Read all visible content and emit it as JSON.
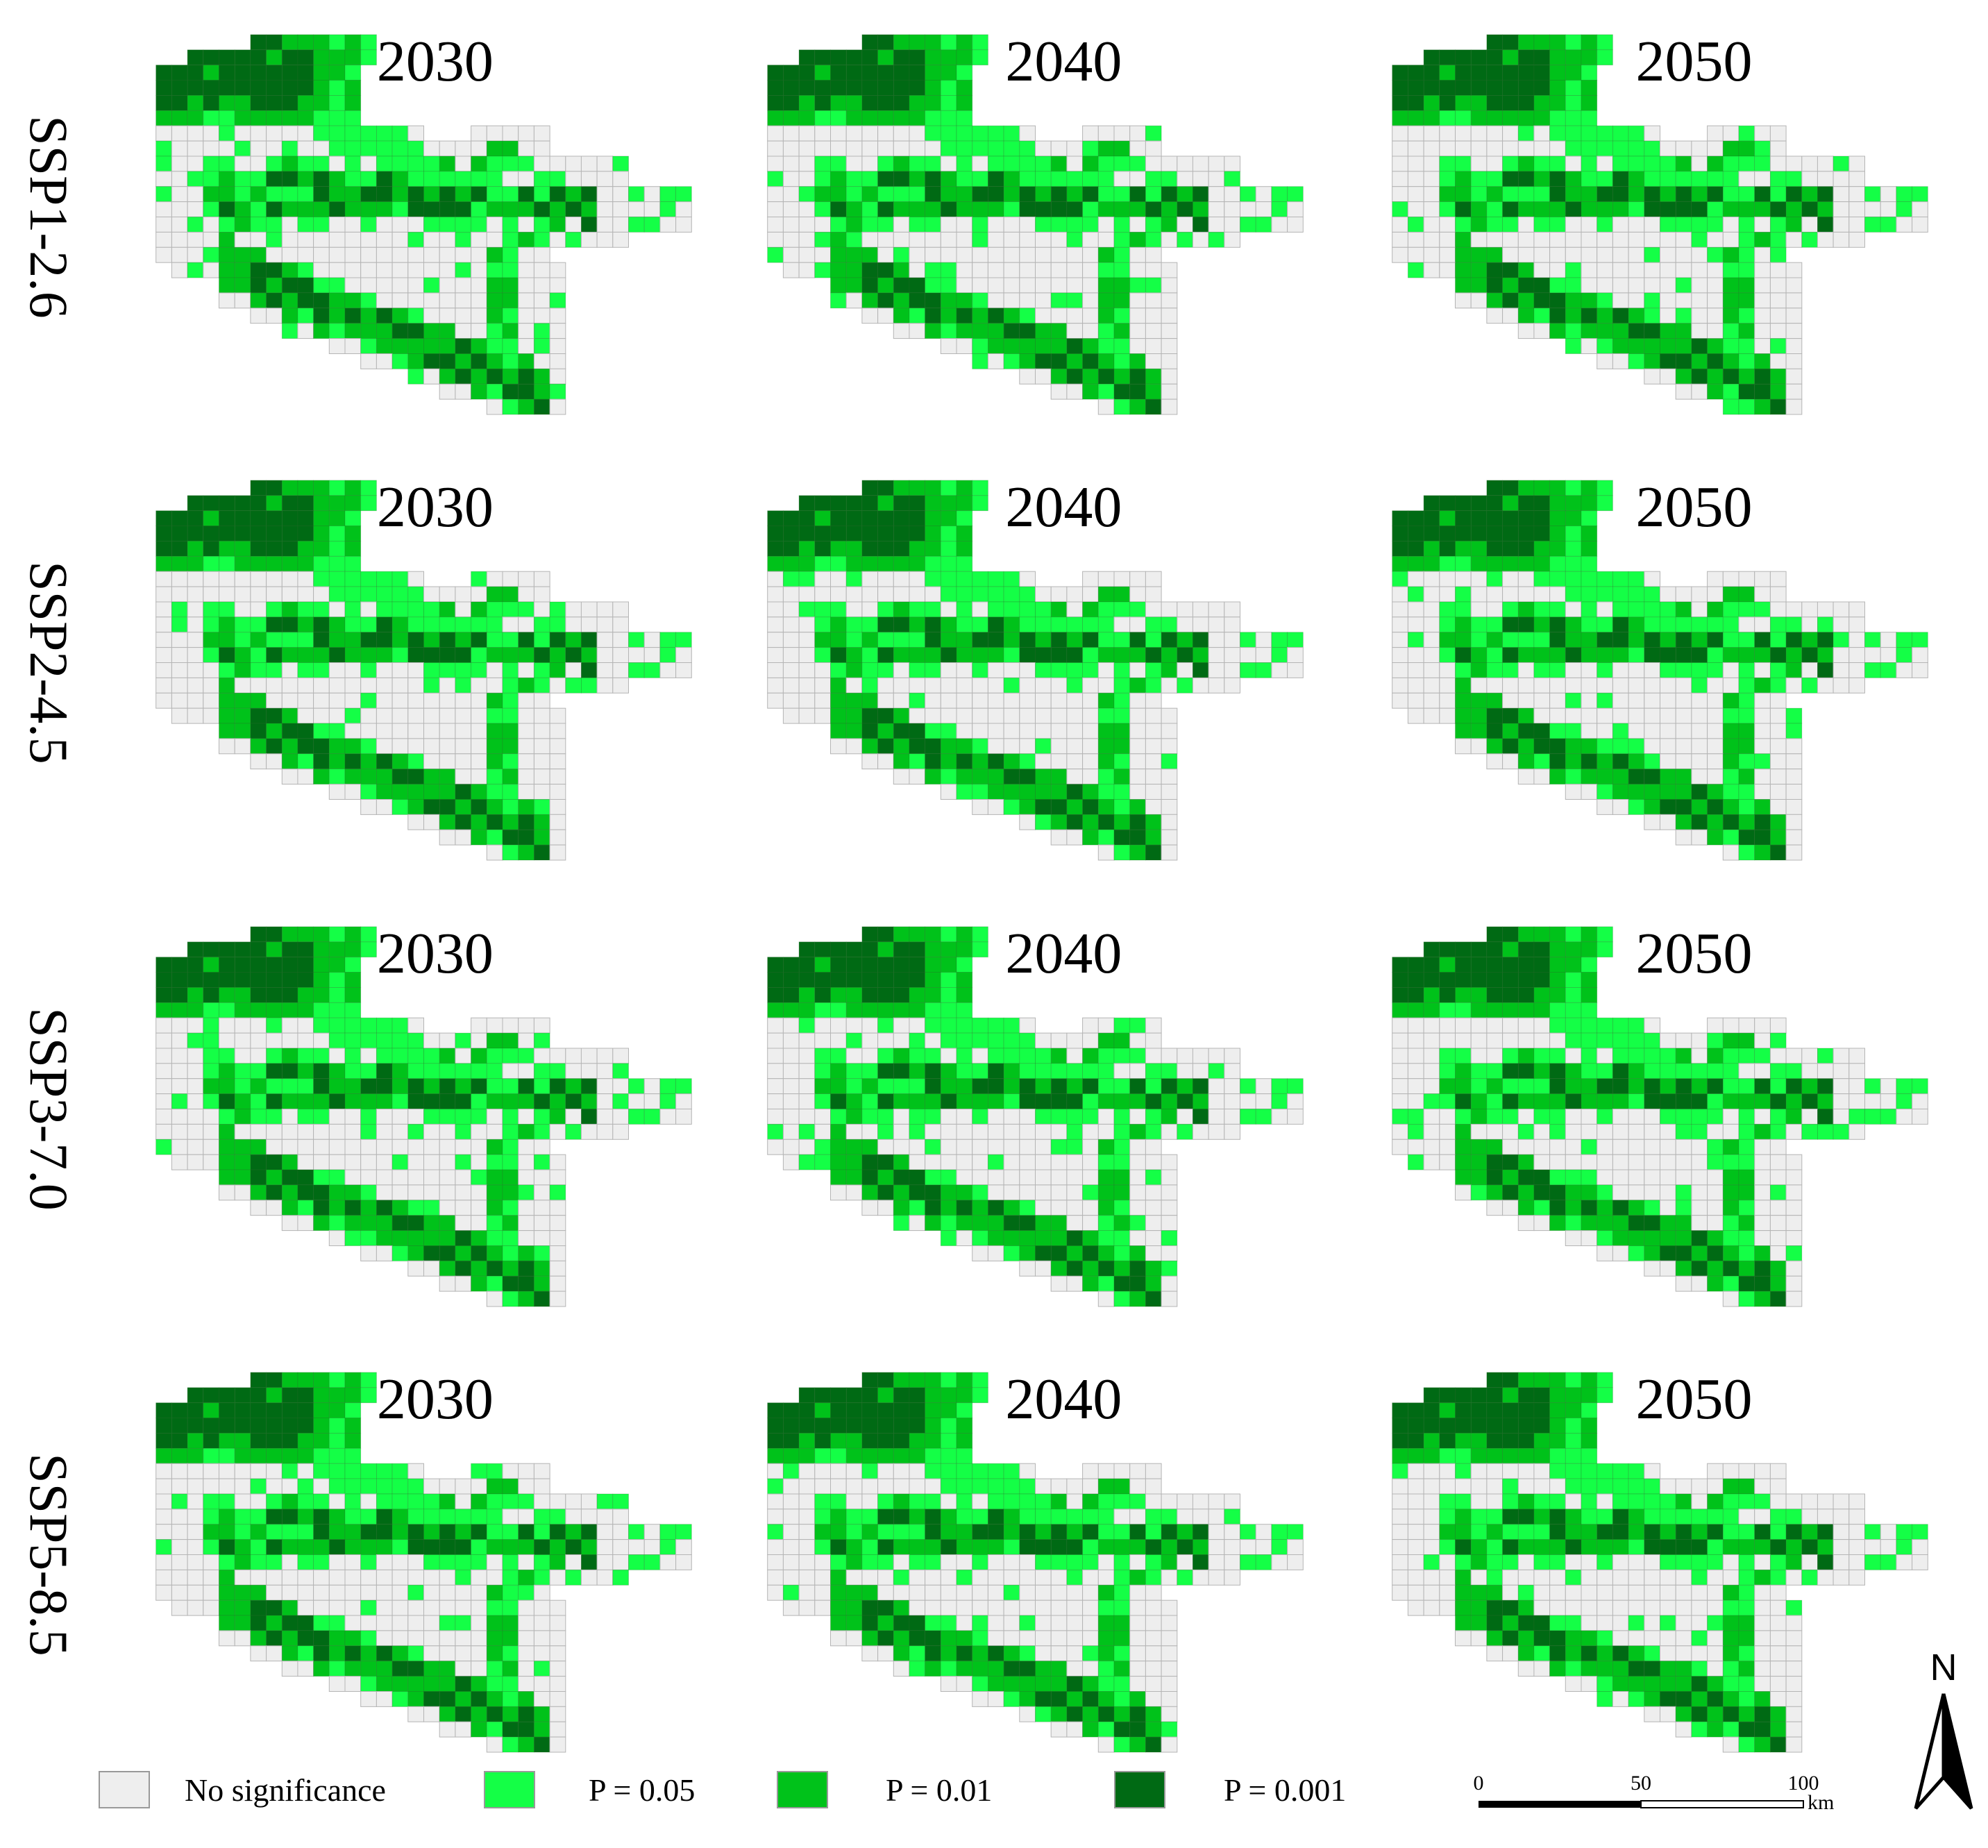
{
  "rows": [
    {
      "label": "SSP1-2.6",
      "panels": [
        "2030",
        "2040",
        "2050"
      ]
    },
    {
      "label": "SSP2-4.5",
      "panels": [
        "2030",
        "2040",
        "2050"
      ]
    },
    {
      "label": "SSP3-7.0",
      "panels": [
        "2030",
        "2040",
        "2050"
      ]
    },
    {
      "label": "SSP5-8.5",
      "panels": [
        "2030",
        "2040",
        "2050"
      ]
    }
  ],
  "legend": [
    {
      "label": "No significance",
      "color": "#eeeeee"
    },
    {
      "label": "P = 0.05",
      "color": "#14ff46"
    },
    {
      "label": "P = 0.01",
      "color": "#00c21a"
    },
    {
      "label": "P = 0.001",
      "color": "#006a14"
    }
  ],
  "scale_bar": {
    "labels": [
      "0",
      "50",
      "100"
    ],
    "unit": "km"
  },
  "north": "N"
}
